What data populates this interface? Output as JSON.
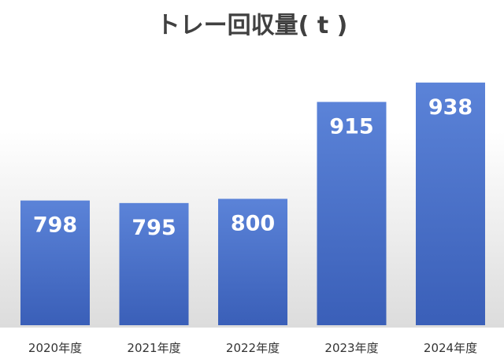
{
  "chart_data": {
    "type": "bar",
    "title": "トレー回収量( t )",
    "xlabel": "",
    "ylabel": "",
    "categories": [
      "2020年度",
      "2021年度",
      "2022年度",
      "2023年度",
      "2024年度"
    ],
    "values": [
      798,
      795,
      800,
      915,
      938
    ],
    "data_labels": [
      "798",
      "795",
      "800",
      "915",
      "938"
    ],
    "ylim": [
      650,
      950
    ],
    "grid": false,
    "legend": "none",
    "colors": {
      "bar_top": "#5b83d8",
      "bar_bottom": "#3a5fb8",
      "title": "#404040",
      "label_text": "#ffffff",
      "tick_text": "#333333",
      "background_top": "#ffffff",
      "background_bottom": "#dcdcdc"
    }
  }
}
